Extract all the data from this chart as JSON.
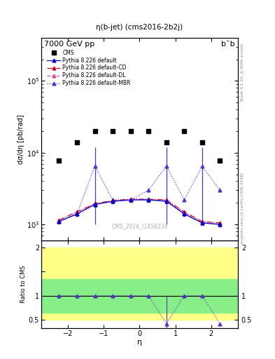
{
  "title_top": "7000 GeV pp",
  "title_right": "b¯b",
  "plot_title": "η(b-jet) (cms2016-2b2j)",
  "xlabel": "η",
  "ylabel_main": "dσ/dη [pb/rad]",
  "ylabel_ratio": "Ratio to CMS",
  "watermark": "CMS_2016_I1456238",
  "right_label_top": "Rivet 3.1.10, ≥ 400k events",
  "right_label_bot": "mcplots.cern.ch [arXiv:1306.3436]",
  "eta_centers": [
    -2.25,
    -1.75,
    -1.25,
    -0.75,
    -0.25,
    0.25,
    0.75,
    1.25,
    1.75,
    2.25
  ],
  "cms_data": [
    7700,
    14000,
    20000,
    20000,
    20000,
    20000,
    14000,
    20000,
    14000,
    7700
  ],
  "pythia_default_y": [
    1100,
    1400,
    1900,
    2100,
    2200,
    2200,
    2100,
    1400,
    1050,
    1000
  ],
  "pythia_default_yerr_lo": [
    80,
    120,
    150,
    180,
    180,
    180,
    180,
    120,
    80,
    80
  ],
  "pythia_default_yerr_hi": [
    80,
    120,
    150,
    180,
    180,
    180,
    180,
    120,
    80,
    80
  ],
  "pythia_cd_y": [
    1150,
    1500,
    1950,
    2150,
    2250,
    2250,
    2200,
    1500,
    1100,
    1050
  ],
  "pythia_dl_y": [
    1100,
    1420,
    1900,
    2100,
    2200,
    2200,
    2150,
    1450,
    1060,
    1010
  ],
  "pythia_mbr_y": [
    1100,
    1400,
    6500,
    2200,
    2200,
    3000,
    6500,
    2200,
    6500,
    3000
  ],
  "pythia_mbr_yerr_lo": [
    0,
    0,
    5500,
    0,
    0,
    0,
    5500,
    0,
    5500,
    0
  ],
  "pythia_mbr_yerr_hi": [
    0,
    0,
    5500,
    0,
    0,
    0,
    5500,
    0,
    5500,
    0
  ],
  "ratio_default_y": [
    1.0,
    1.0,
    1.0,
    1.0,
    1.0,
    1.0,
    1.0,
    1.0,
    1.0,
    1.0
  ],
  "ratio_mbr_y": [
    1.0,
    1.0,
    1.0,
    1.0,
    1.0,
    1.0,
    0.42,
    1.0,
    1.0,
    0.42
  ],
  "ratio_mbr_yerr_lo": [
    0.0,
    0.0,
    0.0,
    0.0,
    0.0,
    0.0,
    0.58,
    0.0,
    0.0,
    0.0
  ],
  "ratio_mbr_yerr_hi": [
    0.0,
    0.0,
    0.0,
    0.0,
    0.0,
    0.0,
    0.58,
    0.0,
    0.0,
    0.0
  ],
  "ylim_main": [
    600,
    400000
  ],
  "ylim_ratio": [
    0.32,
    2.15
  ],
  "color_default": "#0000cc",
  "color_cd": "#cc0022",
  "color_dl": "#cc55aa",
  "color_mbr": "#5533cc",
  "green_band_lo": 0.65,
  "green_band_hi": 1.35,
  "yellow_band_lo": 0.5,
  "yellow_band_hi": 2.0,
  "legend_entries": [
    "CMS",
    "Pythia 8.226 default",
    "Pythia 8.226 default-CD",
    "Pythia 8.226 default-DL",
    "Pythia 8.226 default-MBR"
  ]
}
